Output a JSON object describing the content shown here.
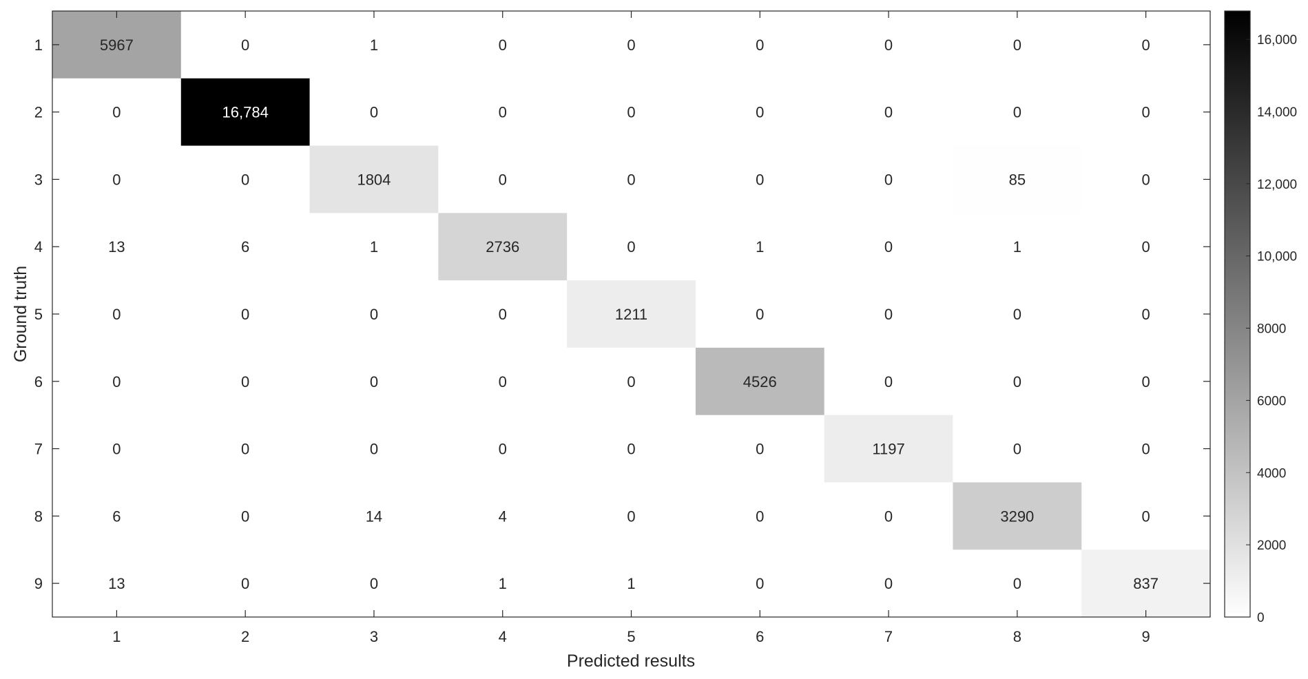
{
  "chart_data": {
    "type": "heatmap",
    "title": "",
    "xlabel": "Predicted results",
    "ylabel": "Ground truth",
    "x_categories": [
      "1",
      "2",
      "3",
      "4",
      "5",
      "6",
      "7",
      "8",
      "9"
    ],
    "y_categories": [
      "1",
      "2",
      "3",
      "4",
      "5",
      "6",
      "7",
      "8",
      "9"
    ],
    "matrix": [
      [
        5967,
        0,
        1,
        0,
        0,
        0,
        0,
        0,
        0
      ],
      [
        0,
        16784,
        0,
        0,
        0,
        0,
        0,
        0,
        0
      ],
      [
        0,
        0,
        1804,
        0,
        0,
        0,
        0,
        85,
        0
      ],
      [
        13,
        6,
        1,
        2736,
        0,
        1,
        0,
        1,
        0
      ],
      [
        0,
        0,
        0,
        0,
        1211,
        0,
        0,
        0,
        0
      ],
      [
        0,
        0,
        0,
        0,
        0,
        4526,
        0,
        0,
        0
      ],
      [
        0,
        0,
        0,
        0,
        0,
        0,
        1197,
        0,
        0
      ],
      [
        6,
        0,
        14,
        4,
        0,
        0,
        0,
        3290,
        0
      ],
      [
        13,
        0,
        0,
        1,
        1,
        0,
        0,
        0,
        837
      ]
    ],
    "cell_labels": [
      [
        "5967",
        "0",
        "1",
        "0",
        "0",
        "0",
        "0",
        "0",
        "0"
      ],
      [
        "0",
        "16,784",
        "0",
        "0",
        "0",
        "0",
        "0",
        "0",
        "0"
      ],
      [
        "0",
        "0",
        "1804",
        "0",
        "0",
        "0",
        "0",
        "85",
        "0"
      ],
      [
        "13",
        "6",
        "1",
        "2736",
        "0",
        "1",
        "0",
        "1",
        "0"
      ],
      [
        "0",
        "0",
        "0",
        "0",
        "1211",
        "0",
        "0",
        "0",
        "0"
      ],
      [
        "0",
        "0",
        "0",
        "0",
        "0",
        "4526",
        "0",
        "0",
        "0"
      ],
      [
        "0",
        "0",
        "0",
        "0",
        "0",
        "0",
        "1197",
        "0",
        "0"
      ],
      [
        "6",
        "0",
        "14",
        "4",
        "0",
        "0",
        "0",
        "3290",
        "0"
      ],
      [
        "13",
        "0",
        "0",
        "1",
        "1",
        "0",
        "0",
        "0",
        "837"
      ]
    ],
    "colormap": "gray-reversed",
    "color_low": "#ffffff",
    "color_high": "#000000",
    "colorbar": {
      "range": [
        0,
        16784
      ],
      "ticks": [
        0,
        2000,
        4000,
        6000,
        8000,
        10000,
        12000,
        14000,
        16000
      ],
      "tick_labels": [
        "0",
        "2000",
        "4000",
        "6000",
        "8000",
        "10,000",
        "12,000",
        "14,000",
        "16,000"
      ],
      "position": "right"
    },
    "grid": false,
    "legend": "none"
  }
}
